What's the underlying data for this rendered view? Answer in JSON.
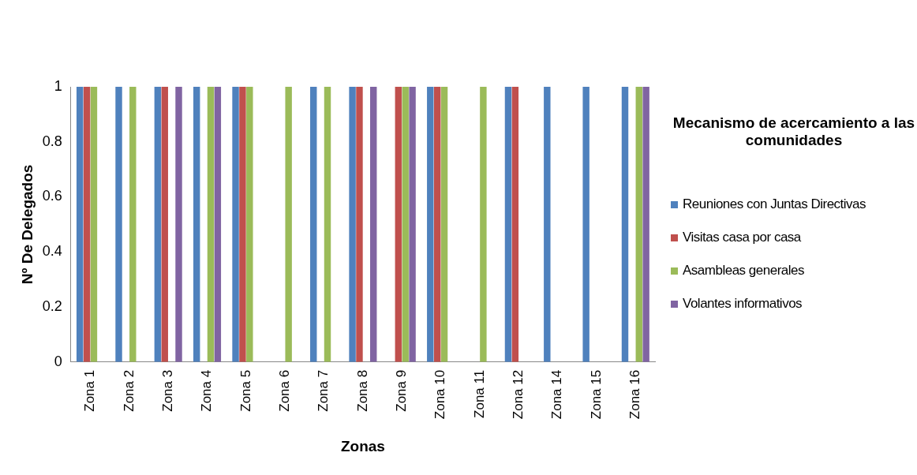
{
  "chart_data": {
    "type": "bar",
    "xlabel": "Zonas",
    "ylabel": "Nº De Delegados",
    "legend_title": "Mecanismo de acercamiento a las comunidades",
    "legend": "right",
    "grid": false,
    "categories": [
      "Zona 1",
      "Zona 2",
      "Zona 3",
      "Zona 4",
      "Zona 5",
      "Zona 6",
      "Zona 7",
      "Zona 8",
      "Zona 9",
      "Zona 10",
      "Zona 11",
      "Zona 12",
      "Zona 14",
      "Zona 15",
      "Zona 16"
    ],
    "ylim": [
      0,
      1
    ],
    "yticks": [
      0,
      0.2,
      0.4,
      0.6,
      0.8,
      1
    ],
    "series": [
      {
        "name": "Reuniones con Juntas Directivas",
        "color": "#4f81bd",
        "values": [
          1,
          1,
          1,
          1,
          1,
          null,
          1,
          1,
          null,
          1,
          null,
          1,
          1,
          1,
          1
        ]
      },
      {
        "name": "Visitas casa por casa",
        "color": "#c0504d",
        "values": [
          1,
          null,
          1,
          null,
          1,
          null,
          null,
          1,
          1,
          1,
          null,
          1,
          null,
          null,
          null
        ]
      },
      {
        "name": "Asambleas generales",
        "color": "#9bbb59",
        "values": [
          1,
          1,
          null,
          1,
          1,
          1,
          1,
          null,
          1,
          1,
          1,
          null,
          null,
          null,
          1
        ]
      },
      {
        "name": "Volantes informativos",
        "color": "#8064a2",
        "values": [
          null,
          null,
          1,
          1,
          null,
          null,
          null,
          1,
          1,
          null,
          null,
          null,
          null,
          null,
          1
        ]
      }
    ]
  }
}
